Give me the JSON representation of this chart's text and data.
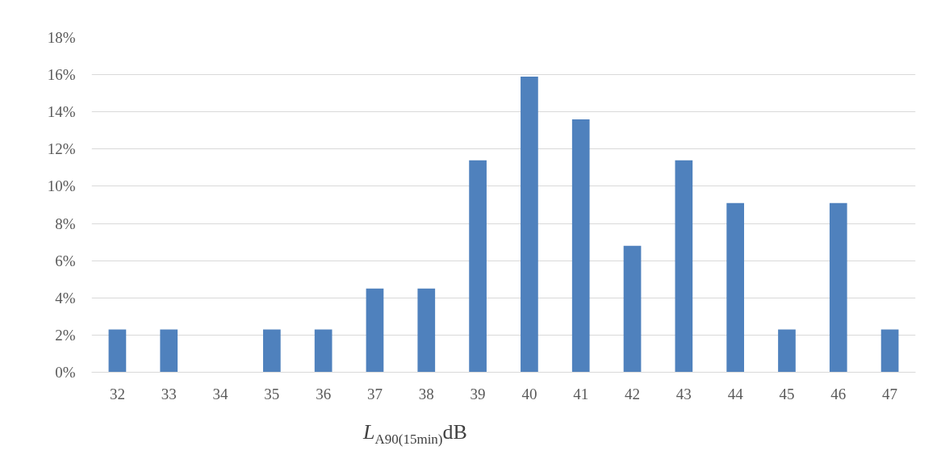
{
  "chart_data": {
    "type": "bar",
    "xlabel": "L$_{A90(15min)}$dB",
    "categories": [
      "32",
      "33",
      "34",
      "35",
      "36",
      "37",
      "38",
      "39",
      "40",
      "41",
      "42",
      "43",
      "44",
      "45",
      "46",
      "47"
    ],
    "values": [
      2.3,
      2.3,
      0,
      2.3,
      2.3,
      4.5,
      4.5,
      11.4,
      15.9,
      13.6,
      6.8,
      11.4,
      9.1,
      2.3,
      9.1,
      2.3
    ],
    "color": "#4f81bd",
    "ylim": [
      0,
      18
    ],
    "yticks": [
      {
        "value": 0,
        "label": "0%"
      },
      {
        "value": 2,
        "label": "2%"
      },
      {
        "value": 4,
        "label": "4%"
      },
      {
        "value": 6,
        "label": "6%"
      },
      {
        "value": 8,
        "label": "8%"
      },
      {
        "value": 10,
        "label": "10%"
      },
      {
        "value": 12,
        "label": "12%"
      },
      {
        "value": 14,
        "label": "14%"
      },
      {
        "value": 16,
        "label": "16%"
      },
      {
        "value": 18,
        "label": "18%"
      }
    ],
    "grid": "y"
  }
}
